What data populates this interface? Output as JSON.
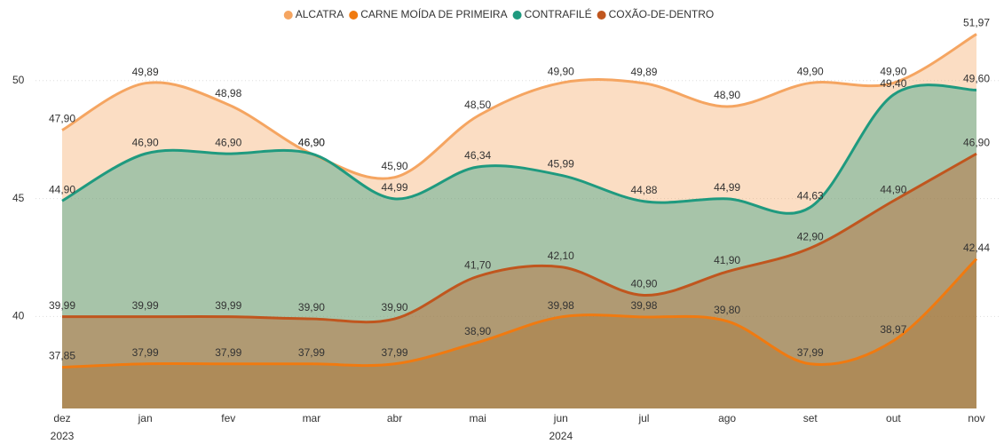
{
  "chart_data": {
    "type": "area",
    "categories": [
      "dez",
      "jan",
      "fev",
      "mar",
      "abr",
      "mai",
      "jun",
      "jul",
      "ago",
      "set",
      "out",
      "nov"
    ],
    "x_group_labels": [
      "2023",
      null,
      null,
      null,
      null,
      null,
      "2024",
      null,
      null,
      null,
      null,
      null
    ],
    "series": [
      {
        "name": "ALCATRA",
        "color": "#f5a561",
        "values": [
          47.9,
          49.89,
          48.98,
          46.9,
          45.9,
          48.5,
          49.9,
          49.89,
          48.9,
          49.9,
          49.9,
          51.97
        ],
        "value_labels": [
          "47,90",
          "49,89",
          "48,98",
          "46,90",
          "45,90",
          "48,50",
          "49,90",
          "49,89",
          "48,90",
          "49,90",
          "49,90",
          "51,97"
        ]
      },
      {
        "name": "CARNE MOÍDA DE PRIMEIRA",
        "color": "#f07a10",
        "values": [
          37.85,
          37.99,
          37.99,
          37.99,
          37.99,
          38.9,
          39.98,
          39.98,
          39.8,
          37.99,
          38.97,
          42.44
        ],
        "value_labels": [
          "37,85",
          "37,99",
          "37,99",
          "37,99",
          "37,99",
          "38,90",
          "39,98",
          "39,98",
          "39,80",
          "37,99",
          "38,97",
          "42,44"
        ]
      },
      {
        "name": "CONTRAFILÉ",
        "color": "#1f9a7f",
        "values": [
          44.9,
          46.9,
          46.9,
          46.9,
          44.99,
          46.34,
          45.99,
          44.88,
          44.99,
          44.63,
          49.4,
          49.6
        ],
        "value_labels": [
          "44,90",
          "46,90",
          "46,90",
          "46,90",
          "44,99",
          "46,34",
          "45,99",
          "44,88",
          "44,99",
          "44,63",
          "49,40",
          "49,60"
        ]
      },
      {
        "name": "COXÃO-DE-DENTRO",
        "color": "#c0561e",
        "values": [
          39.99,
          39.99,
          39.99,
          39.9,
          39.9,
          41.7,
          42.1,
          40.9,
          41.9,
          42.9,
          44.9,
          46.9
        ],
        "value_labels": [
          "39,99",
          "39,99",
          "39,99",
          "39,90",
          "39,90",
          "41,70",
          "42,10",
          "40,90",
          "41,90",
          "42,90",
          "44,90",
          "46,90"
        ]
      }
    ],
    "ylim": [
      36.1,
      52.1
    ],
    "yticks": [
      40,
      45,
      50
    ],
    "grid": true,
    "legend": "top"
  }
}
